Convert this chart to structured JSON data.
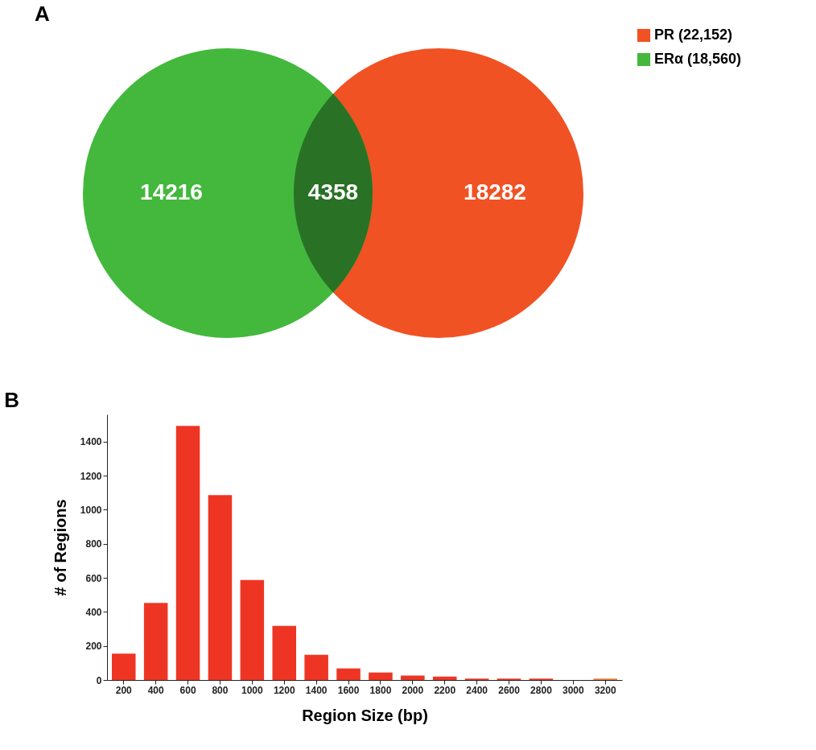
{
  "chart_data": [
    {
      "type": "other",
      "title": "A",
      "series": [
        {
          "name": "PR (22,152)",
          "color": "#f05223"
        },
        {
          "name": "ERα (18,560)",
          "color": "#43b83d"
        }
      ],
      "annotations": [
        "14216",
        "4358",
        "18282"
      ],
      "legend": "right"
    },
    {
      "type": "bar",
      "title": "B",
      "xlabel": "Region Size (bp)",
      "ylabel": "# of Regions",
      "categories": [
        "200",
        "400",
        "600",
        "800",
        "1000",
        "1200",
        "1400",
        "1600",
        "1800",
        "2000",
        "2200",
        "2400",
        "2600",
        "2800",
        "3000",
        "3200"
      ],
      "values": [
        155,
        453,
        1493,
        1086,
        587,
        318,
        148,
        68,
        44,
        26,
        20,
        8,
        8,
        8,
        0,
        8
      ],
      "colors": [
        "#ee3524",
        "#ee3524",
        "#ee3524",
        "#ee3524",
        "#ee3524",
        "#ee3524",
        "#ee3524",
        "#ee3524",
        "#ee3524",
        "#ee3524",
        "#ee3524",
        "#ee3524",
        "#ee3524",
        "#ee3524",
        "#ee3524",
        "#f07a3a"
      ],
      "ylim": [
        0,
        1560
      ],
      "yticks": [
        0,
        200,
        400,
        600,
        800,
        1000,
        1200,
        1400
      ],
      "grid": false
    }
  ]
}
